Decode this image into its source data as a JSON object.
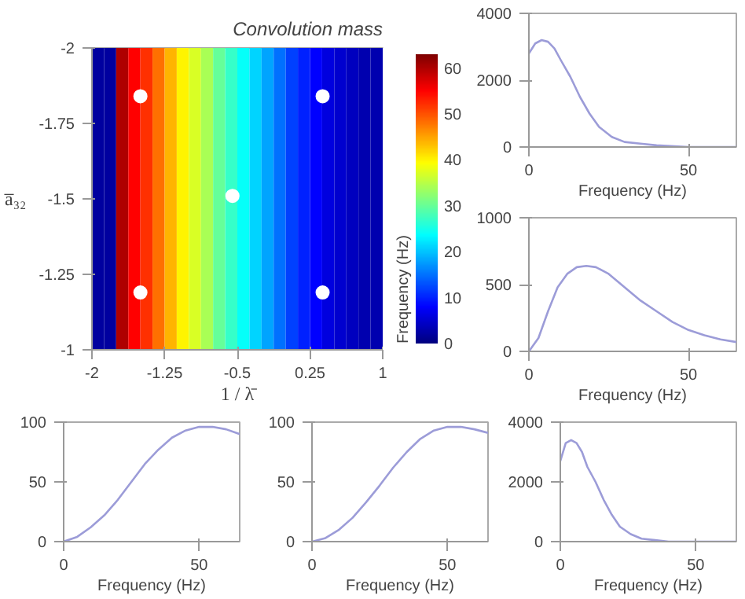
{
  "chart_data": [
    {
      "type": "heatmap",
      "title": "Convolution mass",
      "xlabel": "1 / λ̄",
      "ylabel": "a̅₃₂",
      "clabel": "Frequency (Hz)",
      "x": [
        -1.9375,
        -1.8125,
        -1.6875,
        -1.5625,
        -1.4375,
        -1.3125,
        -1.1875,
        -1.0625,
        -0.9375,
        -0.8125,
        -0.6875,
        -0.5625,
        -0.4375,
        -0.3125,
        -0.1875,
        -0.0625,
        0.0625,
        0.1875,
        0.3125,
        0.4375,
        0.5625,
        0.6875,
        0.8125,
        0.9375
      ],
      "cells": [
        [
          2,
          2,
          60,
          55,
          52,
          48,
          44,
          40,
          37,
          34,
          30,
          27,
          24,
          21,
          18,
          15,
          12,
          10,
          8,
          6,
          5,
          4,
          3,
          3
        ]
      ],
      "clim": [
        0,
        63
      ],
      "cticks": [
        0,
        10,
        20,
        30,
        40,
        50,
        60
      ],
      "xlim": [
        -2,
        1
      ],
      "ylim": [
        -1,
        -2
      ],
      "xticks": [
        -2,
        -1.25,
        -0.5,
        0.25,
        1
      ],
      "yticks": [
        -2,
        -1.75,
        -1.5,
        -1.25,
        -1
      ],
      "series": [
        {
          "type": "scatter",
          "color": "#ffffff",
          "x": [
            -1.5,
            0.38,
            -0.55,
            -1.5,
            0.38
          ],
          "values": [
            -1.84,
            -1.84,
            -1.51,
            -1.19,
            -1.19
          ]
        }
      ],
      "marker": "circle"
    },
    {
      "type": "line",
      "xlabel": "Frequency (Hz)",
      "xlim": [
        0,
        65
      ],
      "xticks": [
        0,
        50
      ],
      "ylim": [
        0,
        4000
      ],
      "yticks": [
        0,
        2000,
        4000
      ],
      "series": [
        {
          "color": "#9c9cd8",
          "x": [
            0,
            2,
            4,
            6,
            8,
            10,
            13,
            16,
            19,
            22,
            26,
            30,
            35,
            40,
            50,
            65
          ],
          "values": [
            2800,
            3100,
            3200,
            3150,
            2950,
            2600,
            2100,
            1500,
            1000,
            600,
            300,
            150,
            100,
            50,
            0,
            0
          ]
        }
      ]
    },
    {
      "type": "line",
      "xlabel": "Frequency (Hz)",
      "xlim": [
        0,
        65
      ],
      "xticks": [
        0,
        50
      ],
      "ylim": [
        0,
        1000
      ],
      "yticks": [
        0,
        500,
        1000
      ],
      "series": [
        {
          "color": "#9c9cd8",
          "x": [
            0,
            3,
            6,
            9,
            12,
            15,
            18,
            21,
            25,
            30,
            35,
            40,
            45,
            50,
            55,
            60,
            65
          ],
          "values": [
            0,
            100,
            300,
            480,
            580,
            630,
            640,
            630,
            580,
            480,
            380,
            300,
            220,
            160,
            120,
            90,
            70
          ]
        }
      ]
    },
    {
      "type": "line",
      "xlabel": "Frequency (Hz)",
      "xlim": [
        0,
        65
      ],
      "xticks": [
        0,
        50
      ],
      "ylim": [
        0,
        100
      ],
      "yticks": [
        0,
        50,
        100
      ],
      "series": [
        {
          "color": "#9c9cd8",
          "x": [
            0,
            5,
            10,
            15,
            20,
            25,
            30,
            35,
            40,
            45,
            50,
            55,
            60,
            65
          ],
          "values": [
            0,
            4,
            12,
            22,
            35,
            50,
            65,
            77,
            87,
            93,
            96,
            96,
            94,
            90
          ]
        }
      ]
    },
    {
      "type": "line",
      "xlabel": "Frequency (Hz)",
      "xlim": [
        0,
        65
      ],
      "xticks": [
        0,
        50
      ],
      "ylim": [
        0,
        100
      ],
      "yticks": [
        0,
        50,
        100
      ],
      "series": [
        {
          "color": "#9c9cd8",
          "x": [
            0,
            5,
            10,
            15,
            20,
            25,
            30,
            35,
            40,
            45,
            50,
            55,
            60,
            65
          ],
          "values": [
            0,
            3,
            10,
            20,
            33,
            47,
            62,
            75,
            86,
            93,
            96,
            96,
            94,
            91
          ]
        }
      ]
    },
    {
      "type": "line",
      "xlabel": "Frequency (Hz)",
      "xlim": [
        0,
        65
      ],
      "xticks": [
        0,
        50
      ],
      "ylim": [
        0,
        4000
      ],
      "yticks": [
        0,
        2000,
        4000
      ],
      "series": [
        {
          "color": "#9c9cd8",
          "x": [
            0,
            2,
            4,
            6,
            8,
            10,
            13,
            16,
            19,
            22,
            26,
            30,
            35,
            40,
            50,
            65
          ],
          "values": [
            2700,
            3300,
            3400,
            3300,
            3000,
            2500,
            2000,
            1400,
            900,
            500,
            250,
            100,
            50,
            0,
            0,
            0
          ]
        }
      ]
    }
  ]
}
